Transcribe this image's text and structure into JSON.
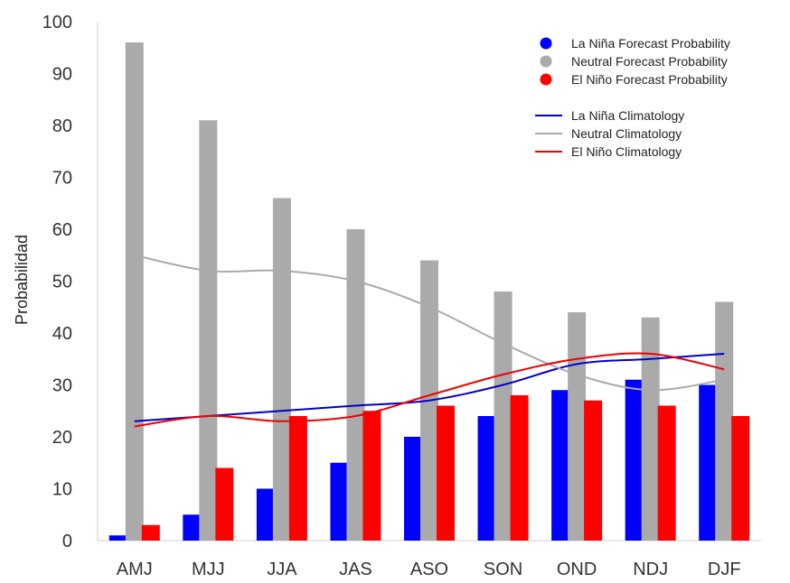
{
  "chart_data": {
    "type": "bar",
    "ylabel": "Probabilidad",
    "xlabel": "",
    "ylim": [
      0,
      100
    ],
    "yticks": [
      0,
      10,
      20,
      30,
      40,
      50,
      60,
      70,
      80,
      90,
      100
    ],
    "categories": [
      "AMJ",
      "MJJ",
      "JJA",
      "JAS",
      "ASO",
      "SON",
      "OND",
      "NDJ",
      "DJF"
    ],
    "series": [
      {
        "name": "La Niña Forecast Probability",
        "color": "#0000ff",
        "values": [
          1,
          5,
          10,
          15,
          20,
          24,
          29,
          31,
          30
        ]
      },
      {
        "name": "Neutral Forecast Probability",
        "color": "#aaaaaa",
        "values": [
          96,
          81,
          66,
          60,
          54,
          48,
          44,
          43,
          46
        ]
      },
      {
        "name": "El Niño Forecast Probability",
        "color": "#ff0000",
        "values": [
          3,
          14,
          24,
          25,
          26,
          28,
          27,
          26,
          24
        ]
      }
    ],
    "climatology": [
      {
        "name": "La Niña Climatology",
        "color": "#0000cc",
        "values": [
          23,
          24,
          25,
          26,
          27,
          30,
          34,
          35,
          36
        ]
      },
      {
        "name": "Neutral Climatology",
        "color": "#aaaaaa",
        "values": [
          55,
          52,
          52,
          50,
          45,
          38,
          32,
          29,
          31
        ]
      },
      {
        "name": "El Niño Climatology",
        "color": "#ee0000",
        "values": [
          22,
          24,
          23,
          24,
          28,
          32,
          35,
          36,
          33
        ]
      }
    ],
    "legend_position": "top-right",
    "grid": false
  }
}
